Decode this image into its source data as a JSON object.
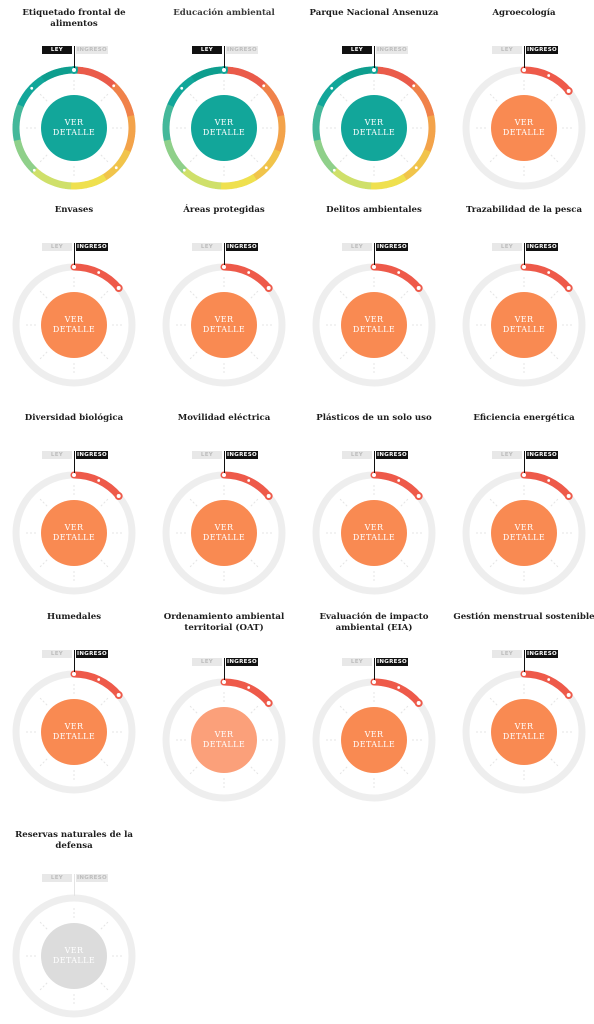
{
  "common": {
    "button_line1": "VER",
    "button_line2": "DETALLE",
    "flag_ley": "LEY",
    "flag_ingreso": "INGRESO"
  },
  "colors": {
    "teal": "#12a69a",
    "orange": "#f98a52",
    "orange_light": "#fba07a",
    "gray_center": "#dcdcdc",
    "track": "#eeeeee",
    "arc_red": "#ee5a4a"
  },
  "cards": [
    {
      "title": "Etiquetado frontal de alimentos",
      "stage": "ley",
      "progress": 1.0,
      "center": "teal"
    },
    {
      "title": "Educación ambiental",
      "stage": "ley",
      "progress": 1.0,
      "center": "teal"
    },
    {
      "title": "Parque Nacional Ansenuza",
      "stage": "ley",
      "progress": 1.0,
      "center": "teal"
    },
    {
      "title": "Agroecología",
      "stage": "ingreso",
      "progress": 0.14,
      "center": "orange"
    },
    {
      "title": "Envases",
      "stage": "ingreso",
      "progress": 0.14,
      "center": "orange"
    },
    {
      "title": "Áreas protegidas",
      "stage": "ingreso",
      "progress": 0.14,
      "center": "orange"
    },
    {
      "title": "Delitos ambientales",
      "stage": "ingreso",
      "progress": 0.14,
      "center": "orange"
    },
    {
      "title": "Trazabilidad de la pesca",
      "stage": "ingreso",
      "progress": 0.14,
      "center": "orange"
    },
    {
      "title": "Diversidad biológica",
      "stage": "ingreso",
      "progress": 0.14,
      "center": "orange"
    },
    {
      "title": "Movilidad eléctrica",
      "stage": "ingreso",
      "progress": 0.14,
      "center": "orange"
    },
    {
      "title": "Plásticos de un solo uso",
      "stage": "ingreso",
      "progress": 0.14,
      "center": "orange"
    },
    {
      "title": "Eficiencia energética",
      "stage": "ingreso",
      "progress": 0.14,
      "center": "orange"
    },
    {
      "title": "Humedales",
      "stage": "ingreso",
      "progress": 0.14,
      "center": "orange"
    },
    {
      "title": "Ordenamiento ambiental territorial (OAT)",
      "stage": "ingreso",
      "progress": 0.14,
      "center": "orange_light"
    },
    {
      "title": "Evaluación de impacto ambiental (EIA)",
      "stage": "ingreso",
      "progress": 0.14,
      "center": "orange"
    },
    {
      "title": "Gestión menstrual sostenible",
      "stage": "ingreso",
      "progress": 0.14,
      "center": "orange"
    },
    {
      "title": "Reservas naturales de la defensa",
      "stage": "none",
      "progress": 0,
      "center": "gray_center"
    }
  ]
}
